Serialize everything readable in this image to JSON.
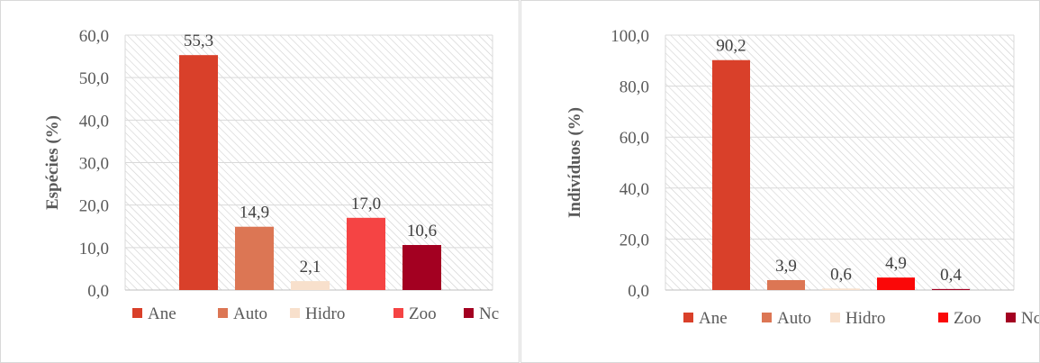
{
  "chart_data": [
    {
      "type": "bar",
      "ylabel": "Espécies (%)",
      "xlabel": "",
      "title": "",
      "ylim": [
        0,
        60
      ],
      "yticks": [
        "0,0",
        "10,0",
        "20,0",
        "30,0",
        "40,0",
        "50,0",
        "60,0"
      ],
      "categories": [
        "Ane",
        "Auto",
        "Hidro",
        "Zoo",
        "Nc"
      ],
      "values": [
        55.3,
        14.9,
        2.1,
        17.0,
        10.6
      ],
      "data_labels": [
        "55,3",
        "14,9",
        "2,1",
        "17,0",
        "10,6"
      ],
      "colors": [
        "#d9402a",
        "#dc7654",
        "#f8e0cc",
        "#f54444",
        "#a30021"
      ],
      "legend": "bottom",
      "grid": true,
      "background_pattern": "diagonal-hatch"
    },
    {
      "type": "bar",
      "ylabel": "Indivíduos (%)",
      "xlabel": "",
      "title": "",
      "ylim": [
        0,
        100
      ],
      "yticks": [
        "0,0",
        "20,0",
        "40,0",
        "60,0",
        "80,0",
        "100,0"
      ],
      "categories": [
        "Ane",
        "Auto",
        "Hidro",
        "Zoo",
        "Nc"
      ],
      "values": [
        90.2,
        3.9,
        0.6,
        4.9,
        0.4
      ],
      "data_labels": [
        "90,2",
        "3,9",
        "0,6",
        "4,9",
        "0,4"
      ],
      "colors": [
        "#d9402a",
        "#dc7654",
        "#f8e0cc",
        "#fa0808",
        "#a30021"
      ],
      "legend": "bottom",
      "grid": true,
      "background_pattern": "diagonal-hatch"
    }
  ]
}
